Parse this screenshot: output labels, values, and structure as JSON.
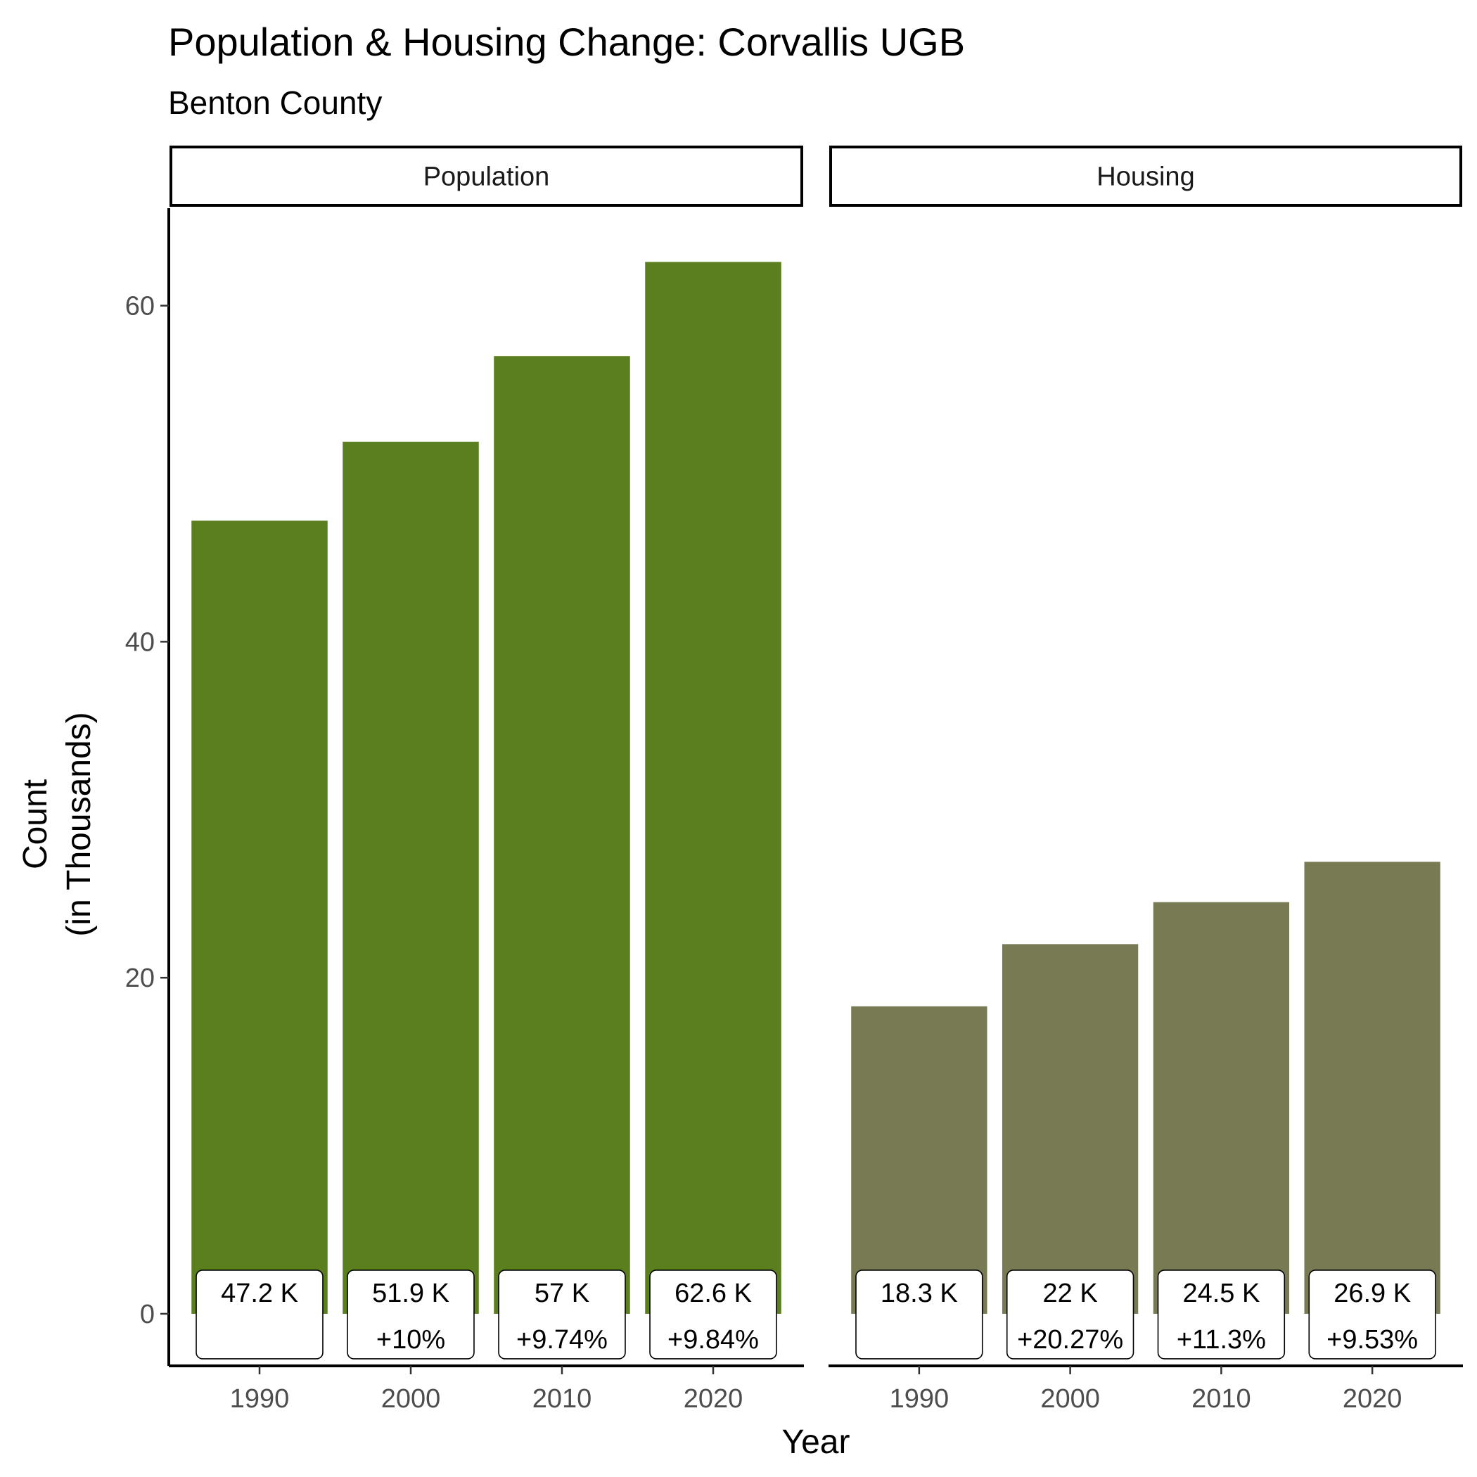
{
  "chart_data": {
    "type": "bar",
    "title": "Population & Housing Change: Corvallis UGB",
    "subtitle": "Benton County",
    "xlabel": "Year",
    "ylabel_line1": "Count",
    "ylabel_line2": "(in Thousands)",
    "ylim": [
      -3.1,
      65.8
    ],
    "yticks": [
      0,
      20,
      40,
      60
    ],
    "categories": [
      "1990",
      "2000",
      "2010",
      "2020"
    ],
    "facets": [
      {
        "name": "Population",
        "color": "#5B7E1E",
        "values": [
          47.2,
          51.9,
          57.0,
          62.6
        ],
        "value_labels": [
          "47.2 K",
          "51.9 K",
          "57 K",
          "62.6 K"
        ],
        "change_labels": [
          "",
          "+10%",
          "+9.74%",
          "+9.84%"
        ]
      },
      {
        "name": "Housing",
        "color": "#787A54",
        "values": [
          18.3,
          22.0,
          24.5,
          26.9
        ],
        "value_labels": [
          "18.3 K",
          "22 K",
          "24.5 K",
          "26.9 K"
        ],
        "change_labels": [
          "",
          "+20.27%",
          "+11.3%",
          "+9.53%"
        ]
      }
    ]
  }
}
